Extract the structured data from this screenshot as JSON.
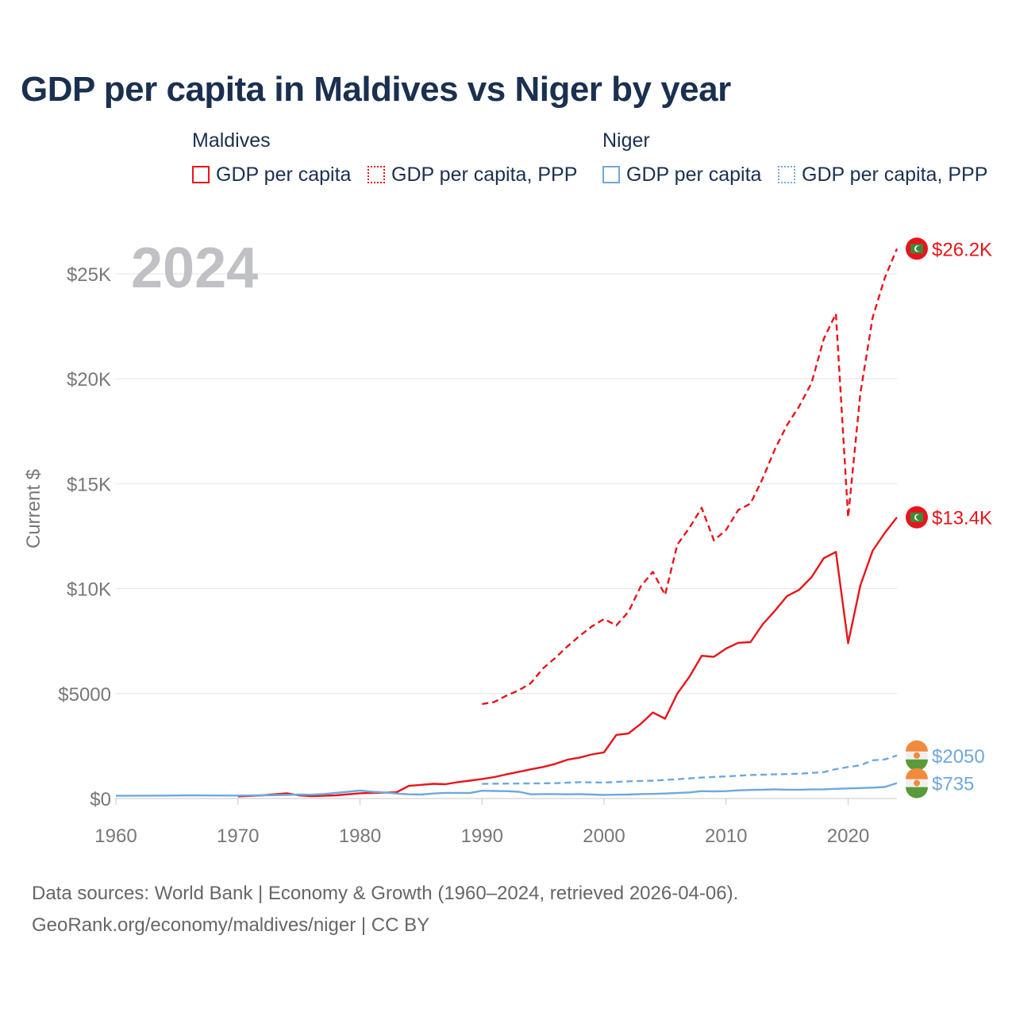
{
  "title": "GDP per capita in Maldives vs Niger by year",
  "legend": {
    "groups": [
      {
        "name": "Maldives",
        "items": [
          "GDP per capita",
          "GDP per capita, PPP"
        ]
      },
      {
        "name": "Niger",
        "items": [
          "GDP per capita",
          "GDP per capita, PPP"
        ]
      }
    ]
  },
  "sources": {
    "line1": "Data sources: World Bank | Economy & Growth (1960–2024, retrieved 2026-04-06).",
    "line2": "GeoRank.org/economy/maldives/niger | CC BY"
  },
  "chart_data": {
    "type": "line",
    "title": "GDP per capita in Maldives vs Niger by year",
    "year_label": "2024",
    "ylabel": "Current $",
    "xlabel": "",
    "xlim": [
      1960,
      2024
    ],
    "ylim": [
      0,
      27000
    ],
    "x_ticks": [
      1960,
      1970,
      1980,
      1990,
      2000,
      2010,
      2020
    ],
    "x_tick_labels": [
      "1960",
      "1970",
      "1980",
      "1990",
      "2000",
      "2010",
      "2020"
    ],
    "y_ticks": [
      0,
      5000,
      10000,
      15000,
      20000,
      25000
    ],
    "y_tick_labels": [
      "$0",
      "$5000",
      "$10K",
      "$15K",
      "$20K",
      "$25K"
    ],
    "grid": true,
    "colors": {
      "maldives": "#e8141b",
      "niger": "#6fa8dc"
    },
    "series": [
      {
        "name": "Maldives GDP per capita",
        "country": "Maldives",
        "style": "solid",
        "color": "#e8141b",
        "end_label": "$13.4K",
        "x": [
          1970,
          1972,
          1974,
          1975,
          1976,
          1978,
          1980,
          1982,
          1983,
          1984,
          1985,
          1986,
          1987,
          1988,
          1989,
          1990,
          1991,
          1992,
          1993,
          1994,
          1995,
          1996,
          1997,
          1998,
          1999,
          2000,
          2001,
          2002,
          2003,
          2004,
          2005,
          2006,
          2007,
          2008,
          2009,
          2010,
          2011,
          2012,
          2013,
          2014,
          2015,
          2016,
          2017,
          2018,
          2019,
          2020,
          2021,
          2022,
          2023,
          2024
        ],
        "values": [
          100,
          150,
          250,
          150,
          110,
          150,
          250,
          280,
          300,
          600,
          650,
          700,
          680,
          780,
          850,
          930,
          1020,
          1150,
          1270,
          1390,
          1500,
          1650,
          1850,
          1950,
          2100,
          2200,
          3030,
          3100,
          3550,
          4100,
          3800,
          5000,
          5800,
          6800,
          6750,
          7150,
          7420,
          7450,
          8300,
          8950,
          9650,
          9950,
          10550,
          11450,
          11750,
          7400,
          10150,
          11800,
          12650,
          13400
        ]
      },
      {
        "name": "Maldives GDP per capita, PPP",
        "country": "Maldives",
        "style": "dashed",
        "color": "#e8141b",
        "end_label": "$26.2K",
        "x": [
          1990,
          1991,
          1992,
          1993,
          1994,
          1995,
          1996,
          1997,
          1998,
          1999,
          2000,
          2001,
          2002,
          2003,
          2004,
          2005,
          2006,
          2007,
          2008,
          2009,
          2010,
          2011,
          2012,
          2013,
          2014,
          2015,
          2016,
          2017,
          2018,
          2019,
          2020,
          2021,
          2022,
          2023,
          2024
        ],
        "values": [
          4500,
          4600,
          4900,
          5150,
          5500,
          6200,
          6700,
          7250,
          7750,
          8200,
          8550,
          8250,
          8900,
          10100,
          10800,
          9700,
          12100,
          12900,
          13850,
          12300,
          12800,
          13750,
          14050,
          15250,
          16650,
          17800,
          18700,
          19800,
          21900,
          23100,
          13400,
          19300,
          22900,
          24800,
          26200
        ]
      },
      {
        "name": "Niger GDP per capita",
        "country": "Niger",
        "style": "solid",
        "color": "#6fa8dc",
        "end_label": "$735",
        "x": [
          1960,
          1962,
          1964,
          1965,
          1966,
          1968,
          1970,
          1972,
          1974,
          1975,
          1976,
          1977,
          1978,
          1979,
          1980,
          1981,
          1982,
          1983,
          1984,
          1985,
          1986,
          1987,
          1988,
          1989,
          1990,
          1991,
          1992,
          1993,
          1994,
          1995,
          1996,
          1997,
          1998,
          1999,
          2000,
          2001,
          2002,
          2003,
          2004,
          2005,
          2006,
          2007,
          2008,
          2009,
          2010,
          2011,
          2012,
          2013,
          2014,
          2015,
          2016,
          2017,
          2018,
          2019,
          2020,
          2021,
          2022,
          2023,
          2024
        ],
        "values": [
          130,
          135,
          140,
          145,
          150,
          145,
          140,
          150,
          170,
          190,
          180,
          210,
          270,
          320,
          380,
          320,
          290,
          240,
          200,
          190,
          240,
          270,
          270,
          260,
          370,
          360,
          350,
          320,
          200,
          210,
          210,
          200,
          210,
          190,
          170,
          180,
          190,
          210,
          220,
          240,
          260,
          290,
          350,
          340,
          350,
          390,
          410,
          420,
          440,
          420,
          420,
          430,
          440,
          460,
          480,
          500,
          520,
          550,
          735
        ]
      },
      {
        "name": "Niger GDP per capita, PPP",
        "country": "Niger",
        "style": "dashed",
        "color": "#6fa8dc",
        "end_label": "$2050",
        "x": [
          1990,
          1992,
          1994,
          1996,
          1998,
          2000,
          2002,
          2004,
          2006,
          2008,
          2010,
          2012,
          2014,
          2016,
          2018,
          2019,
          2020,
          2021,
          2022,
          2023,
          2024
        ],
        "values": [
          700,
          710,
          720,
          730,
          780,
          760,
          820,
          850,
          920,
          1000,
          1050,
          1120,
          1150,
          1180,
          1260,
          1400,
          1500,
          1580,
          1820,
          1860,
          2050
        ]
      }
    ]
  }
}
